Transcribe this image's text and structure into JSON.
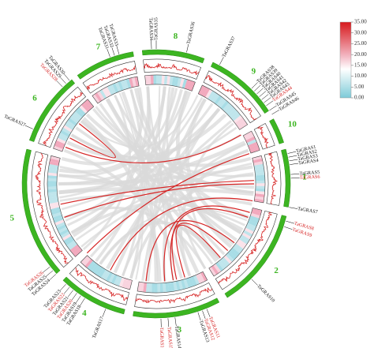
{
  "colors": {
    "chrom": "#3cb521",
    "chrom_label": "#3cb521",
    "link_red": "#d62424",
    "link_grey": "#d9d9d9",
    "line_black": "#000000",
    "label_red": "#d62424",
    "heat_high": "#d7191c",
    "heat_mid": "#ffffff",
    "heat_low": "#7ecbd8"
  },
  "legend": {
    "ticks": [
      "35.00",
      "30.00",
      "25.00",
      "20.00",
      "15.00",
      "10.00",
      "5.00",
      "0.00"
    ],
    "scale": [
      0,
      35
    ]
  },
  "chromosomes": [
    {
      "id": "1",
      "start": 75,
      "end": 100
    },
    {
      "id": "2",
      "start": 104,
      "end": 148
    },
    {
      "id": "3",
      "start": 152,
      "end": 190
    },
    {
      "id": "4",
      "start": 194,
      "end": 224
    },
    {
      "id": "5",
      "start": 228,
      "end": 285
    },
    {
      "id": "6",
      "start": 289,
      "end": 321
    },
    {
      "id": "7",
      "start": 324,
      "end": 350
    },
    {
      "id": "8",
      "start": 354,
      "end": 21
    },
    {
      "id": "9",
      "start": 25,
      "end": 57
    },
    {
      "id": "10",
      "start": 61,
      "end": 72
    }
  ],
  "genes": [
    {
      "label": "TaGRAS1",
      "angle": 77.0,
      "color": "black"
    },
    {
      "label": "TaGRAS2",
      "angle": 78.6,
      "color": "black"
    },
    {
      "label": "TaGRAS3",
      "angle": 80.2,
      "color": "black"
    },
    {
      "label": "TaGRAS4",
      "angle": 81.8,
      "color": "black"
    },
    {
      "label": "TaGRAS5",
      "angle": 86.0,
      "color": "black"
    },
    {
      "label": "TaGRAS6",
      "angle": 87.6,
      "color": "red"
    },
    {
      "label": "TaGRAS7",
      "angle": 100.0,
      "color": "black"
    },
    {
      "label": "TaGRAS8",
      "angle": 106.0,
      "color": "red"
    },
    {
      "label": "TaGRAS9",
      "angle": 108.5,
      "color": "red"
    },
    {
      "label": "TaGRAS10",
      "angle": 135.0,
      "color": "black"
    },
    {
      "label": "TaGRAS11",
      "angle": 158.0,
      "color": "red"
    },
    {
      "label": "TaGRAS12",
      "angle": 160.0,
      "color": "red"
    },
    {
      "label": "TaGRAS13",
      "angle": 162.0,
      "color": "black"
    },
    {
      "label": "TaGRAS14",
      "angle": 172.0,
      "color": "black"
    },
    {
      "label": "TaGRAS15",
      "angle": 175.0,
      "color": "red"
    },
    {
      "label": "TaGRAS16",
      "angle": 178.0,
      "color": "red"
    },
    {
      "label": "TaGRAS17",
      "angle": 202.0,
      "color": "black"
    },
    {
      "label": "TaGRAS18",
      "angle": 212.0,
      "color": "black"
    },
    {
      "label": "TaGRAS19",
      "angle": 214.0,
      "color": "black"
    },
    {
      "label": "TaGRAS20",
      "angle": 216.0,
      "color": "red"
    },
    {
      "label": "TaGRAS21",
      "angle": 218.0,
      "color": "black"
    },
    {
      "label": "TaGRAS22",
      "angle": 220.0,
      "color": "red"
    },
    {
      "label": "TaGRAS23",
      "angle": 222.0,
      "color": "black"
    },
    {
      "label": "TaGRAS24",
      "angle": 228.0,
      "color": "black"
    },
    {
      "label": "TaGRAS25",
      "angle": 230.0,
      "color": "black"
    },
    {
      "label": "TaGRAS26",
      "angle": 232.0,
      "color": "red"
    },
    {
      "label": "TaGRAS27",
      "angle": 294.0,
      "color": "black"
    },
    {
      "label": "TaGRAS28",
      "angle": 316.0,
      "color": "red"
    },
    {
      "label": "TaGRAS29",
      "angle": 318.0,
      "color": "black"
    },
    {
      "label": "TaGRAS30",
      "angle": 320.0,
      "color": "black"
    },
    {
      "label": "TaGRAS31",
      "angle": 340.0,
      "color": "black"
    },
    {
      "label": "TaGRAS32",
      "angle": 342.0,
      "color": "black"
    },
    {
      "label": "TaGRAS33",
      "angle": 344.0,
      "color": "black"
    },
    {
      "label": "TaGRAS34",
      "angle": 358.0,
      "color": "black"
    },
    {
      "label": "TaGRAS35",
      "angle": 0.0,
      "color": "black"
    },
    {
      "label": "TaGRAS36",
      "angle": 13.0,
      "color": "black"
    },
    {
      "label": "TaGRAS37",
      "angle": 28.0,
      "color": "black"
    },
    {
      "label": "TaGRAS38",
      "angle": 45.0,
      "color": "black"
    },
    {
      "label": "TaGRAS39",
      "angle": 46.6,
      "color": "black"
    },
    {
      "label": "TaGRAS40",
      "angle": 48.2,
      "color": "black"
    },
    {
      "label": "TaGRAS41",
      "angle": 49.8,
      "color": "black"
    },
    {
      "label": "TaGRAS42",
      "angle": 51.4,
      "color": "black"
    },
    {
      "label": "TaGRAS43",
      "angle": 53.0,
      "color": "black"
    },
    {
      "label": "TaGRAS44",
      "angle": 54.6,
      "color": "red"
    },
    {
      "label": "TaGRAS45",
      "angle": 57.0,
      "color": "black"
    },
    {
      "label": "TaGRAS46",
      "angle": 59.0,
      "color": "black"
    }
  ],
  "red_links": [
    [
      60,
      292
    ],
    [
      72,
      225
    ],
    [
      88,
      258
    ],
    [
      90,
      250
    ],
    [
      100,
      208
    ],
    [
      107,
      175
    ],
    [
      110,
      170
    ],
    [
      127,
      186
    ],
    [
      133,
      168
    ],
    [
      139,
      163
    ],
    [
      308,
      298
    ]
  ],
  "grey_links": [
    [
      80,
      270
    ],
    [
      92,
      300
    ],
    [
      95,
      320
    ],
    [
      102,
      240
    ],
    [
      115,
      260
    ],
    [
      120,
      305
    ],
    [
      125,
      330
    ],
    [
      128,
      345
    ],
    [
      140,
      215
    ],
    [
      145,
      280
    ],
    [
      150,
      250
    ],
    [
      155,
      330
    ],
    [
      165,
      290
    ],
    [
      180,
      340
    ],
    [
      185,
      10
    ],
    [
      188,
      30
    ],
    [
      195,
      345
    ],
    [
      200,
      355
    ],
    [
      205,
      20
    ],
    [
      210,
      40
    ],
    [
      218,
      5
    ],
    [
      222,
      50
    ],
    [
      235,
      70
    ],
    [
      240,
      15
    ],
    [
      245,
      35
    ],
    [
      255,
      55
    ],
    [
      265,
      65
    ],
    [
      275,
      12
    ],
    [
      285,
      350
    ],
    [
      295,
      45
    ],
    [
      300,
      60
    ],
    [
      310,
      25
    ],
    [
      315,
      75
    ],
    [
      322,
      85
    ],
    [
      335,
      95
    ],
    [
      348,
      110
    ],
    [
      2,
      170
    ],
    [
      8,
      150
    ],
    [
      18,
      130
    ],
    [
      30,
      120
    ],
    [
      40,
      175
    ],
    [
      52,
      140
    ],
    [
      66,
      200
    ],
    [
      70,
      160
    ],
    [
      78,
      230
    ],
    [
      84,
      195
    ],
    [
      96,
      265
    ],
    [
      112,
      215
    ],
    [
      118,
      275
    ],
    [
      136,
      325
    ],
    [
      142,
      310
    ],
    [
      160,
      355
    ],
    [
      178,
      312
    ],
    [
      192,
      338
    ],
    [
      228,
      335
    ],
    [
      238,
      355
    ],
    [
      248,
      28
    ],
    [
      262,
      18
    ],
    [
      270,
      40
    ],
    [
      278,
      5
    ]
  ]
}
